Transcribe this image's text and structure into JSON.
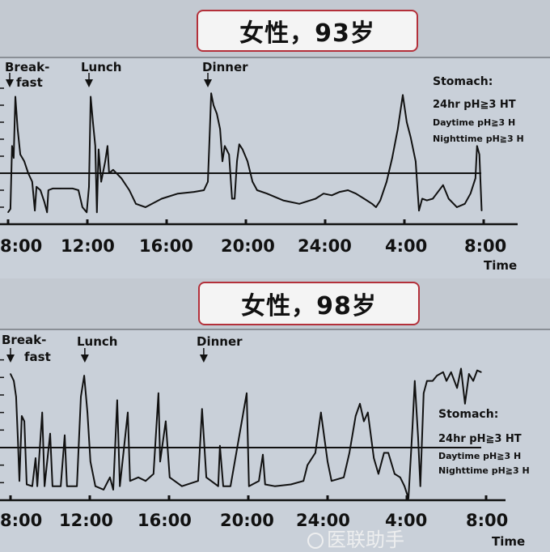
{
  "chart_data": [
    {
      "type": "line",
      "title": "女性，93岁",
      "xlabel": "Time",
      "x_tick_labels": [
        "8:00",
        "12:00",
        "16:00",
        "20:00",
        "24:00",
        "4:00",
        "8:00"
      ],
      "ylim": [
        0,
        8
      ],
      "threshold_pH": 3,
      "meals": [
        {
          "label_line1": "Break-",
          "label_line2": "fast",
          "time": "08:00"
        },
        {
          "label_line1": "Lunch",
          "label_line2": "",
          "time": "12:00"
        },
        {
          "label_line1": "Dinner",
          "label_line2": "",
          "time": "18:00"
        }
      ],
      "legend": {
        "heading": "Stomach:",
        "line1": "24hr pH≧3 HT",
        "line2": "Daytime  pH≧3 H",
        "line3": "Nighttime pH≧3 H"
      },
      "series": [
        {
          "time": [
            "08:00",
            "08:07",
            "08:12",
            "08:17",
            "08:22",
            "08:29",
            "08:37",
            "08:49",
            "09:01",
            "09:13",
            "09:21",
            "09:26",
            "09:38",
            "09:50",
            "09:58",
            "10:02",
            "10:15",
            "10:39",
            "11:16",
            "11:33",
            "11:45",
            "11:58",
            "12:05",
            "12:10",
            "12:17",
            "12:24",
            "12:29",
            "12:34",
            "12:42",
            "12:54",
            "13:01",
            "13:06",
            "13:18",
            "13:43",
            "14:07",
            "14:27",
            "14:56",
            "15:45",
            "16:34",
            "17:23",
            "17:53",
            "18:05",
            "18:10",
            "18:15",
            "18:22",
            "18:32",
            "18:42",
            "18:49",
            "18:56",
            "19:09",
            "19:18",
            "19:26",
            "19:33",
            "19:40",
            "19:50",
            "20:05",
            "20:20",
            "20:34",
            "21:04",
            "21:53",
            "22:42",
            "23:31",
            "23:55",
            "00:20",
            "00:44",
            "01:09",
            "01:33",
            "01:58",
            "02:22",
            "02:34",
            "02:47",
            "03:06",
            "03:23",
            "03:40",
            "03:55",
            "04:07",
            "04:19",
            "04:34",
            "04:44",
            "04:54",
            "05:08",
            "05:26",
            "05:57",
            "06:14",
            "06:39",
            "07:03",
            "07:20",
            "07:35",
            "07:40",
            "07:47",
            "07:54"
          ],
          "pH": [
            0.7,
            0.9,
            4.6,
            3.9,
            7.5,
            5.6,
            4.1,
            3.7,
            3.0,
            2.5,
            0.8,
            2.2,
            2.0,
            1.3,
            0.7,
            2.0,
            2.1,
            2.1,
            2.1,
            2.0,
            1.0,
            0.7,
            2.2,
            7.5,
            6.0,
            4.6,
            0.7,
            4.4,
            2.5,
            3.7,
            4.6,
            3.0,
            3.2,
            2.7,
            2.0,
            1.2,
            1.0,
            1.5,
            1.8,
            1.9,
            2.0,
            2.5,
            5.1,
            7.7,
            7.0,
            6.5,
            5.6,
            3.7,
            4.6,
            4.1,
            1.5,
            1.5,
            3.7,
            4.7,
            4.4,
            3.7,
            2.5,
            2.0,
            1.8,
            1.4,
            1.2,
            1.5,
            1.8,
            1.7,
            1.9,
            2.0,
            1.8,
            1.5,
            1.2,
            1.0,
            1.4,
            2.5,
            3.9,
            5.6,
            7.6,
            6.0,
            5.1,
            3.7,
            0.8,
            1.5,
            1.4,
            1.5,
            2.3,
            1.5,
            1.0,
            1.2,
            1.8,
            2.7,
            4.6,
            4.1,
            0.8
          ]
        }
      ]
    },
    {
      "type": "line",
      "title": "女性，98岁",
      "xlabel": "Time",
      "x_tick_labels": [
        "8:00",
        "12:00",
        "16:00",
        "20:00",
        "24:00",
        "4:00",
        "8:00"
      ],
      "ylim": [
        0,
        8
      ],
      "threshold_pH": 3,
      "meals": [
        {
          "label_line1": "Break-",
          "label_line2": "fast",
          "time": "08:00"
        },
        {
          "label_line1": "Lunch",
          "label_line2": "",
          "time": "11:45"
        },
        {
          "label_line1": "Dinner",
          "label_line2": "",
          "time": "17:45"
        }
      ],
      "legend": {
        "heading": "Stomach:",
        "line1": "24hr pH≧3 HT",
        "line2": "Daytime  pH≧3 H",
        "line3": "Nighttime pH≧3 H"
      },
      "series": [
        {
          "time": [
            "08:00",
            "08:10",
            "08:17",
            "08:22",
            "08:27",
            "08:34",
            "08:42",
            "08:49",
            "09:06",
            "09:16",
            "09:21",
            "09:36",
            "09:43",
            "10:00",
            "10:07",
            "10:32",
            "10:44",
            "10:51",
            "11:21",
            "11:33",
            "11:43",
            "11:53",
            "12:02",
            "12:17",
            "12:42",
            "13:01",
            "13:11",
            "13:23",
            "13:31",
            "13:55",
            "14:02",
            "14:27",
            "14:49",
            "15:13",
            "15:28",
            "15:33",
            "15:50",
            "16:02",
            "16:39",
            "17:28",
            "17:40",
            "17:53",
            "18:29",
            "18:34",
            "18:44",
            "19:06",
            "19:55",
            "20:02",
            "20:32",
            "20:44",
            "20:51",
            "21:20",
            "22:09",
            "22:47",
            "22:59",
            "23:23",
            "23:40",
            "00:00",
            "00:12",
            "00:49",
            "01:06",
            "01:25",
            "01:38",
            "01:50",
            "02:02",
            "02:20",
            "02:34",
            "02:51",
            "03:04",
            "03:23",
            "03:40",
            "03:53",
            "04:05",
            "04:17",
            "04:24",
            "04:34",
            "04:41",
            "04:51",
            "05:01",
            "05:18",
            "05:31",
            "05:50",
            "06:00",
            "06:14",
            "06:32",
            "06:44",
            "06:56",
            "07:08",
            "07:21",
            "07:33",
            "07:45"
          ],
          "pH": [
            7.2,
            6.8,
            5.9,
            3.6,
            1.1,
            4.8,
            4.5,
            0.9,
            0.8,
            2.4,
            0.8,
            5.0,
            0.8,
            3.8,
            0.8,
            0.8,
            3.7,
            0.8,
            0.8,
            5.9,
            7.1,
            5.0,
            2.2,
            0.8,
            0.6,
            1.3,
            0.6,
            5.7,
            0.8,
            5.0,
            1.1,
            1.3,
            1.1,
            1.5,
            6.1,
            2.2,
            4.5,
            1.3,
            0.8,
            1.1,
            5.2,
            1.3,
            0.8,
            3.1,
            0.8,
            0.8,
            6.1,
            0.8,
            1.1,
            2.6,
            0.9,
            0.8,
            0.9,
            1.1,
            2.0,
            2.7,
            5.0,
            2.2,
            1.1,
            1.3,
            2.7,
            4.8,
            5.5,
            4.5,
            5.0,
            2.4,
            1.5,
            2.7,
            2.7,
            1.5,
            1.3,
            0.8,
            0.1,
            4.1,
            6.8,
            3.6,
            0.8,
            6.1,
            6.8,
            6.8,
            7.1,
            7.3,
            6.8,
            7.3,
            6.4,
            7.5,
            5.5,
            7.2,
            6.8,
            7.4,
            7.3
          ]
        }
      ]
    }
  ],
  "watermark": "医联助手",
  "colors": {
    "title_border": "#b3303a",
    "trace": "#111111",
    "plot_bg": "#c9d0d9"
  }
}
